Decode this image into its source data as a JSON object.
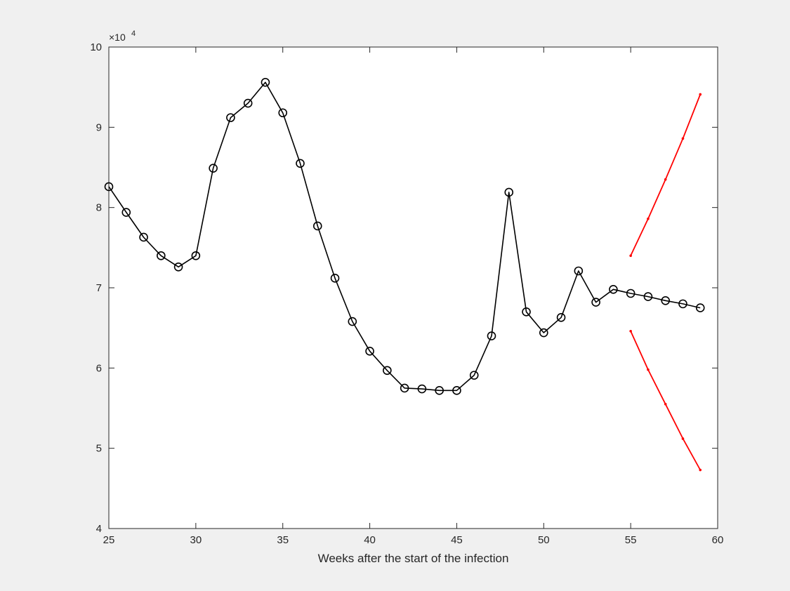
{
  "chart_data": {
    "type": "line",
    "title": "",
    "xlabel": "Weeks after the start of the infection",
    "ylabel": "",
    "xlim": [
      25,
      60
    ],
    "ylim": [
      40000,
      100000
    ],
    "x_ticks": [
      25,
      30,
      35,
      40,
      45,
      50,
      55,
      60
    ],
    "y_ticks": [
      40000,
      50000,
      60000,
      70000,
      80000,
      90000,
      100000
    ],
    "y_tick_labels": [
      "4",
      "5",
      "6",
      "7",
      "8",
      "9",
      "10"
    ],
    "y_exponent_label": {
      "base": "×10",
      "exponent": "4"
    },
    "grid": false,
    "legend": "none",
    "colors": {
      "background": "#f0f0f0",
      "axes": "#ffffff",
      "axis_line": "#262626",
      "observed": "#000000",
      "bounds": "#ff0000"
    },
    "series": [
      {
        "style": "line-circle-markers",
        "color": "#000000",
        "x": [
          25,
          26,
          27,
          28,
          29,
          30,
          31,
          32,
          33,
          34,
          35,
          36,
          37,
          38,
          39,
          40,
          41,
          42,
          43,
          44,
          45,
          46,
          47,
          48,
          49,
          50,
          51,
          52,
          53,
          54,
          55,
          56,
          57,
          58,
          59
        ],
        "y": [
          82600,
          79400,
          76300,
          74000,
          72600,
          74000,
          84900,
          91200,
          93000,
          95600,
          91800,
          85500,
          77700,
          71200,
          65800,
          62100,
          59700,
          57500,
          57400,
          57200,
          57200,
          59100,
          64000,
          81900,
          67000,
          64400,
          66300,
          72100,
          68200,
          69800,
          69300,
          68900,
          68400,
          68000,
          67500
        ]
      },
      {
        "style": "line-dot-markers",
        "color": "#ff0000",
        "x": [
          55,
          56,
          57,
          58,
          59
        ],
        "y": [
          74000,
          78600,
          83500,
          88600,
          94100
        ]
      },
      {
        "style": "line-dot-markers",
        "color": "#ff0000",
        "x": [
          55,
          56,
          57,
          58,
          59
        ],
        "y": [
          64600,
          59800,
          55500,
          51200,
          47300
        ]
      }
    ]
  }
}
